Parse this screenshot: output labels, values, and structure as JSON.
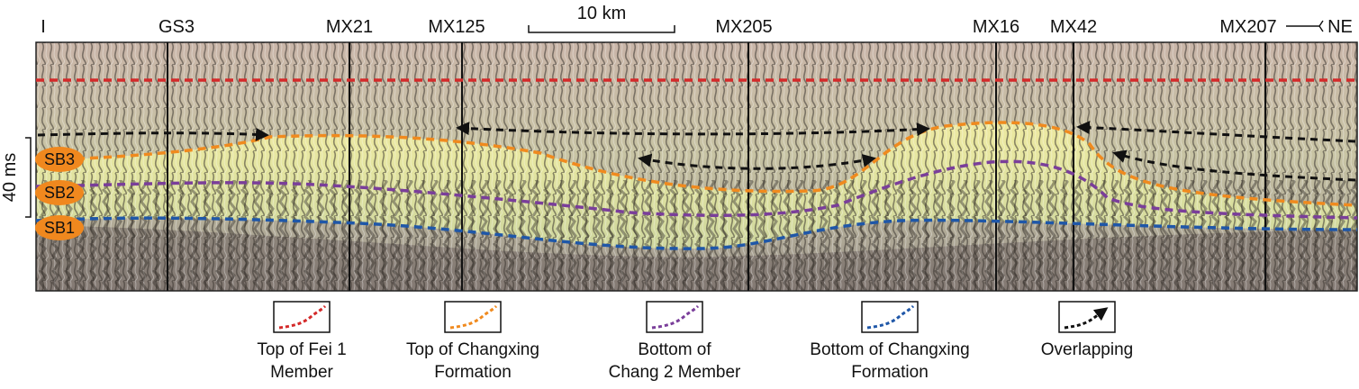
{
  "figure": {
    "left_end_label": "I",
    "right_end_label": "NE",
    "wells": [
      "GS3",
      "MX21",
      "MX125",
      "MX205",
      "MX16",
      "MX42",
      "MX207"
    ],
    "scale_bar_label": "10 km",
    "time_scale_label": "40 ms",
    "sequence_boundaries": [
      {
        "label": "SB3",
        "color": "#f0881e"
      },
      {
        "label": "SB2",
        "color": "#f0881e"
      },
      {
        "label": "SB1",
        "color": "#f0881e"
      }
    ]
  },
  "colors": {
    "top_fei1": "#d42a2a",
    "top_changxing": "#f08a1e",
    "bottom_chang2": "#7a3e9a",
    "bottom_changxing": "#1f57a8",
    "overlapping": "#111111"
  },
  "legend": {
    "items": [
      {
        "line1": "Top of Fei 1",
        "line2": "Member",
        "key": "top_fei1"
      },
      {
        "line1": "Top of Changxing",
        "line2": "Formation",
        "key": "top_changxing"
      },
      {
        "line1": "Bottom of",
        "line2": "Chang 2 Member",
        "key": "bottom_chang2"
      },
      {
        "line1": "Bottom of Changxing",
        "line2": "Formation",
        "key": "bottom_changxing"
      },
      {
        "line1": "Overlapping",
        "line2": "",
        "key": "overlapping"
      }
    ]
  }
}
